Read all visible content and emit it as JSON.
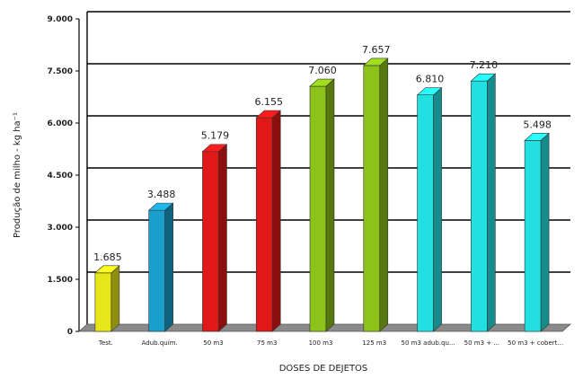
{
  "chart_data": {
    "type": "bar",
    "title": "",
    "xlabel": "DOSES DE DEJETOS",
    "ylabel": "Produção de milho - kg ha⁻¹",
    "ylim": [
      0,
      9000
    ],
    "yticks": [
      0,
      1500,
      3000,
      4500,
      6000,
      7500,
      9000
    ],
    "ytick_labels": [
      "0",
      "1.500",
      "3.000",
      "4.500",
      "6.000",
      "7.500",
      "9.000"
    ],
    "categories": [
      "Test.",
      "Adub.quím.",
      "50 m3",
      "75 m3",
      "100 m3",
      "125 m3",
      "50 m3 adub.qu...",
      "50 m3 + ...",
      "50 m3 + cobert..."
    ],
    "values": [
      1685,
      3488,
      5179,
      6155,
      7060,
      7657,
      6810,
      7210,
      5498
    ],
    "value_labels": [
      "1.685",
      "3.488",
      "5.179",
      "6.155",
      "7.060",
      "7.657",
      "6.810",
      "7.210",
      "5.498"
    ],
    "colors": [
      "#e6e619",
      "#1a9fcc",
      "#e01818",
      "#e01818",
      "#8cc21a",
      "#8cc21a",
      "#22e0e0",
      "#22e0e0",
      "#22e0e0"
    ],
    "grid": true,
    "legend": "none"
  }
}
